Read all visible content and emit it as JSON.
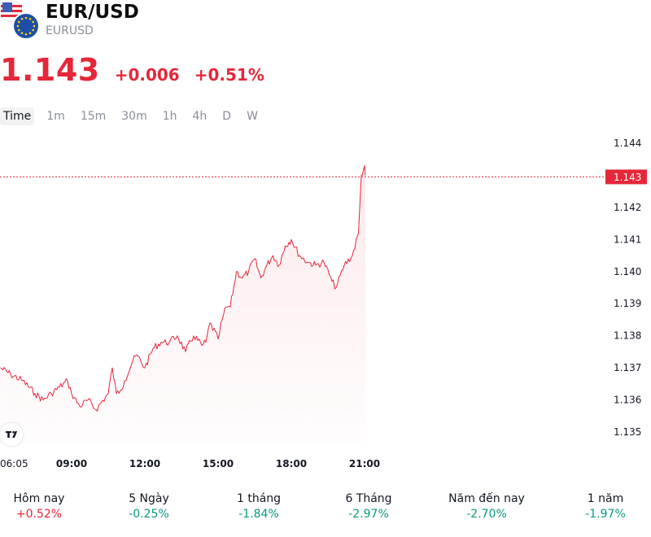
{
  "header": {
    "title": "EUR/USD",
    "subtitle": "EURUSD"
  },
  "quote": {
    "price": "1.143",
    "change": "+0.006",
    "change_percent": "+0.51%",
    "color": "#e5273a"
  },
  "tabs": [
    {
      "label": "Time",
      "active": true
    },
    {
      "label": "1m",
      "active": false
    },
    {
      "label": "15m",
      "active": false
    },
    {
      "label": "30m",
      "active": false
    },
    {
      "label": "1h",
      "active": false
    },
    {
      "label": "4h",
      "active": false
    },
    {
      "label": "D",
      "active": false
    },
    {
      "label": "W",
      "active": false
    }
  ],
  "chart_data": {
    "type": "area",
    "title": "",
    "xlabel": "",
    "ylabel": "",
    "x_ticks": [
      "06:05",
      "09:00",
      "12:00",
      "15:00",
      "18:00",
      "21:00"
    ],
    "y_ticks": [
      "1.144",
      "1.143",
      "1.142",
      "1.141",
      "1.140",
      "1.139",
      "1.138",
      "1.137",
      "1.136",
      "1.135"
    ],
    "ylim": [
      1.1346,
      1.1445
    ],
    "current_value": "1.143",
    "current_value_num": 1.143,
    "line_color": "#e5273a",
    "series": [
      {
        "name": "",
        "x": [
          "06:05",
          "06:30",
          "07:00",
          "07:30",
          "07:50",
          "08:10",
          "08:30",
          "08:50",
          "09:00",
          "09:20",
          "09:40",
          "10:00",
          "10:30",
          "10:40",
          "10:50",
          "11:00",
          "11:10",
          "11:30",
          "11:40",
          "12:00",
          "12:20",
          "12:40",
          "13:00",
          "13:20",
          "13:40",
          "14:00",
          "14:20",
          "14:30",
          "14:40",
          "15:00",
          "15:10",
          "15:20",
          "15:30",
          "15:45",
          "16:00",
          "16:15",
          "16:30",
          "16:45",
          "17:00",
          "17:15",
          "17:30",
          "17:45",
          "18:00",
          "18:20",
          "18:40",
          "19:00",
          "19:20",
          "19:40",
          "19:50",
          "20:10",
          "20:30",
          "20:45",
          "20:52",
          "21:00",
          "21:01",
          "21:02"
        ],
        "values": [
          1.137,
          1.1368,
          1.1366,
          1.1362,
          1.136,
          1.1362,
          1.1364,
          1.1366,
          1.1362,
          1.1358,
          1.136,
          1.1357,
          1.1362,
          1.137,
          1.1362,
          1.1363,
          1.1366,
          1.1372,
          1.1374,
          1.137,
          1.1376,
          1.1378,
          1.1378,
          1.138,
          1.1375,
          1.138,
          1.1377,
          1.1378,
          1.1384,
          1.1379,
          1.1385,
          1.1389,
          1.1389,
          1.14,
          1.1398,
          1.14,
          1.1404,
          1.1398,
          1.1402,
          1.1405,
          1.1402,
          1.1408,
          1.141,
          1.1405,
          1.1403,
          1.1402,
          1.1403,
          1.1397,
          1.1395,
          1.1402,
          1.1405,
          1.1412,
          1.143,
          1.1433,
          1.1431,
          1.143
        ]
      }
    ]
  },
  "performance": [
    {
      "label": "Hôm nay",
      "value": "+0.52%",
      "sign": "pos"
    },
    {
      "label": "5 Ngày",
      "value": "-0.25%",
      "sign": "neg"
    },
    {
      "label": "1 tháng",
      "value": "-1.84%",
      "sign": "neg"
    },
    {
      "label": "6 Tháng",
      "value": "-2.97%",
      "sign": "neg"
    },
    {
      "label": "Năm đến nay",
      "value": "-2.70%",
      "sign": "neg"
    },
    {
      "label": "1 năm",
      "value": "-1.97%",
      "sign": "neg"
    }
  ]
}
